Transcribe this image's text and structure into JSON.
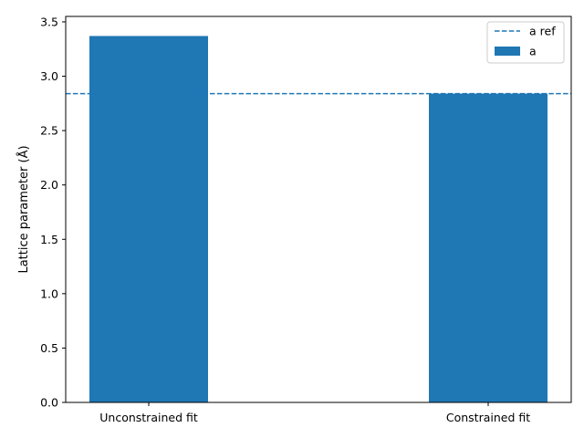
{
  "chart_data": {
    "type": "bar",
    "title": "",
    "xlabel": "",
    "ylabel": "Lattice parameter (Å)",
    "categories": [
      "Unconstrained fit",
      "Constrained fit"
    ],
    "series": [
      {
        "name": "a",
        "values": [
          3.37,
          2.84
        ]
      }
    ],
    "reference_line": {
      "name": "a ref",
      "value": 2.84,
      "style": "dashed"
    },
    "ylim": [
      0,
      3.55
    ],
    "yticks": [
      0.0,
      0.5,
      1.0,
      1.5,
      2.0,
      2.5,
      3.0,
      3.5
    ],
    "ytick_labels": [
      "0.0",
      "0.5",
      "1.0",
      "1.5",
      "2.0",
      "2.5",
      "3.0",
      "3.5"
    ],
    "grid": false,
    "legend_position": "top-right",
    "colors": {
      "bar": "#1f77b4",
      "reference_line": "#1f77b4"
    }
  }
}
